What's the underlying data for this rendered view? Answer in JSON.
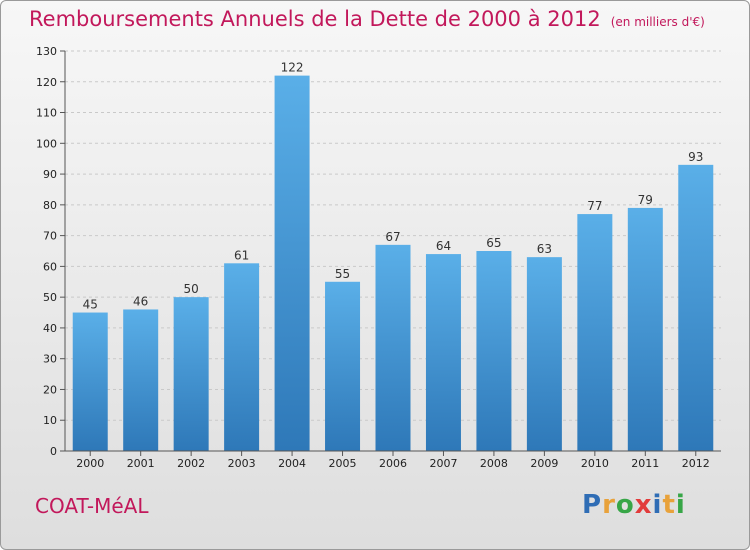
{
  "title": "Remboursements Annuels de la Dette de 2000 à 2012",
  "unit": "(en milliers d'€)",
  "commune": "COAT-MéAL",
  "logo": {
    "text": "Proxiti",
    "letters": [
      "P",
      "r",
      "o",
      "x",
      "i",
      "t",
      "i"
    ],
    "colors": [
      "#2f6db5",
      "#e8a23b",
      "#37a647",
      "#e23b3b",
      "#2f6db5",
      "#e8a23b",
      "#37a647"
    ]
  },
  "colors": {
    "accent": "#c2185b",
    "bar_top": "#5aafe8",
    "bar_bottom": "#2e78b8"
  },
  "chart_data": {
    "type": "bar",
    "title": "Remboursements Annuels de la Dette de 2000 à 2012",
    "xlabel": "",
    "ylabel": "",
    "categories": [
      "2000",
      "2001",
      "2002",
      "2003",
      "2004",
      "2005",
      "2006",
      "2007",
      "2008",
      "2009",
      "2010",
      "2011",
      "2012"
    ],
    "values": [
      45,
      46,
      50,
      61,
      122,
      55,
      67,
      64,
      65,
      63,
      77,
      79,
      93
    ],
    "ylim": [
      0,
      130
    ],
    "yticks": [
      0,
      10,
      20,
      30,
      40,
      50,
      60,
      70,
      80,
      90,
      100,
      110,
      120,
      130
    ],
    "grid": true
  }
}
